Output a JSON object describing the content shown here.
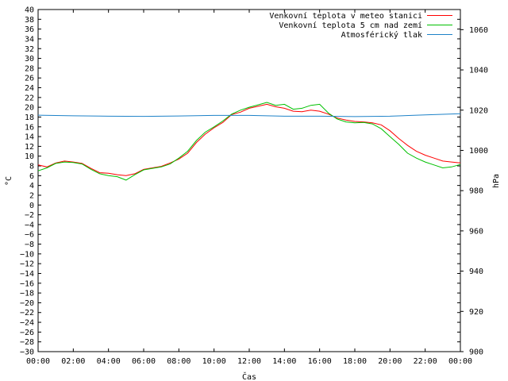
{
  "chart_data": {
    "type": "line",
    "xlabel": "Čas",
    "ylabel": "°C",
    "y2label": "hPa",
    "x_ticks": [
      "00:00",
      "02:00",
      "04:00",
      "06:00",
      "08:00",
      "10:00",
      "12:00",
      "14:00",
      "16:00",
      "18:00",
      "20:00",
      "22:00",
      "00:00"
    ],
    "x_range_hours": [
      0,
      24
    ],
    "ylim": [
      -30,
      40
    ],
    "y_tick_step": 2,
    "y2lim": [
      900,
      1070
    ],
    "y2_ticks": [
      900,
      920,
      940,
      960,
      980,
      1000,
      1020,
      1040,
      1060
    ],
    "grid": false,
    "legend_placement": "top-right",
    "series": [
      {
        "name": "Venkovní teplota v meteo stanici",
        "color": "#ff0000",
        "axis": "y",
        "x": [
          0,
          0.5,
          1,
          1.5,
          2,
          2.5,
          3,
          3.5,
          4,
          4.5,
          5,
          5.5,
          6,
          6.5,
          7,
          7.5,
          8,
          8.5,
          9,
          9.5,
          10,
          10.5,
          11,
          11.5,
          12,
          12.5,
          13,
          13.5,
          14,
          14.5,
          15,
          15.5,
          16,
          16.5,
          17,
          17.5,
          18,
          18.5,
          19,
          19.5,
          20,
          20.5,
          21,
          21.5,
          22,
          22.5,
          23,
          23.5,
          24
        ],
        "values": [
          8.2,
          7.8,
          8.6,
          9.0,
          8.8,
          8.5,
          7.5,
          6.6,
          6.5,
          6.2,
          6.0,
          6.4,
          7.3,
          7.6,
          7.9,
          8.6,
          9.4,
          10.6,
          12.8,
          14.5,
          15.8,
          16.9,
          18.5,
          19.0,
          19.8,
          20.2,
          20.6,
          20.1,
          19.8,
          19.2,
          19.1,
          19.4,
          19.2,
          18.6,
          17.8,
          17.4,
          17.1,
          17.0,
          16.8,
          16.4,
          15.2,
          13.6,
          12.2,
          11.0,
          10.2,
          9.6,
          9.0,
          8.8,
          8.6
        ]
      },
      {
        "name": "Venkovní teplota 5 cm nad zemí",
        "color": "#00c000",
        "axis": "y",
        "x": [
          0,
          0.5,
          1,
          1.5,
          2,
          2.5,
          3,
          3.5,
          4,
          4.5,
          5,
          5.5,
          6,
          6.5,
          7,
          7.5,
          8,
          8.5,
          9,
          9.5,
          10,
          10.5,
          11,
          11.5,
          12,
          12.5,
          13,
          13.5,
          14,
          14.5,
          15,
          15.5,
          16,
          16.5,
          17,
          17.5,
          18,
          18.5,
          19,
          19.5,
          20,
          20.5,
          21,
          21.5,
          22,
          22.5,
          23,
          23.5,
          24
        ],
        "values": [
          7.0,
          7.6,
          8.5,
          8.8,
          8.7,
          8.4,
          7.3,
          6.4,
          6.0,
          5.8,
          5.1,
          6.2,
          7.2,
          7.5,
          7.8,
          8.4,
          9.6,
          11.0,
          13.2,
          14.9,
          16.0,
          17.2,
          18.6,
          19.4,
          20.0,
          20.5,
          21.0,
          20.4,
          20.6,
          19.6,
          19.8,
          20.4,
          20.6,
          18.8,
          17.6,
          17.0,
          16.8,
          16.9,
          16.6,
          15.6,
          14.0,
          12.4,
          10.6,
          9.6,
          8.8,
          8.2,
          7.6,
          7.8,
          8.3
        ]
      },
      {
        "name": "Atmosférický tlak",
        "color": "#1e82c8",
        "axis": "y2",
        "x": [
          0,
          2,
          4,
          6,
          8,
          10,
          12,
          14,
          16,
          18,
          20,
          22,
          24
        ],
        "values": [
          1017.5,
          1017.2,
          1017.0,
          1016.9,
          1017.1,
          1017.4,
          1017.4,
          1017.0,
          1017.0,
          1016.8,
          1017.0,
          1017.6,
          1018.2
        ]
      }
    ]
  }
}
